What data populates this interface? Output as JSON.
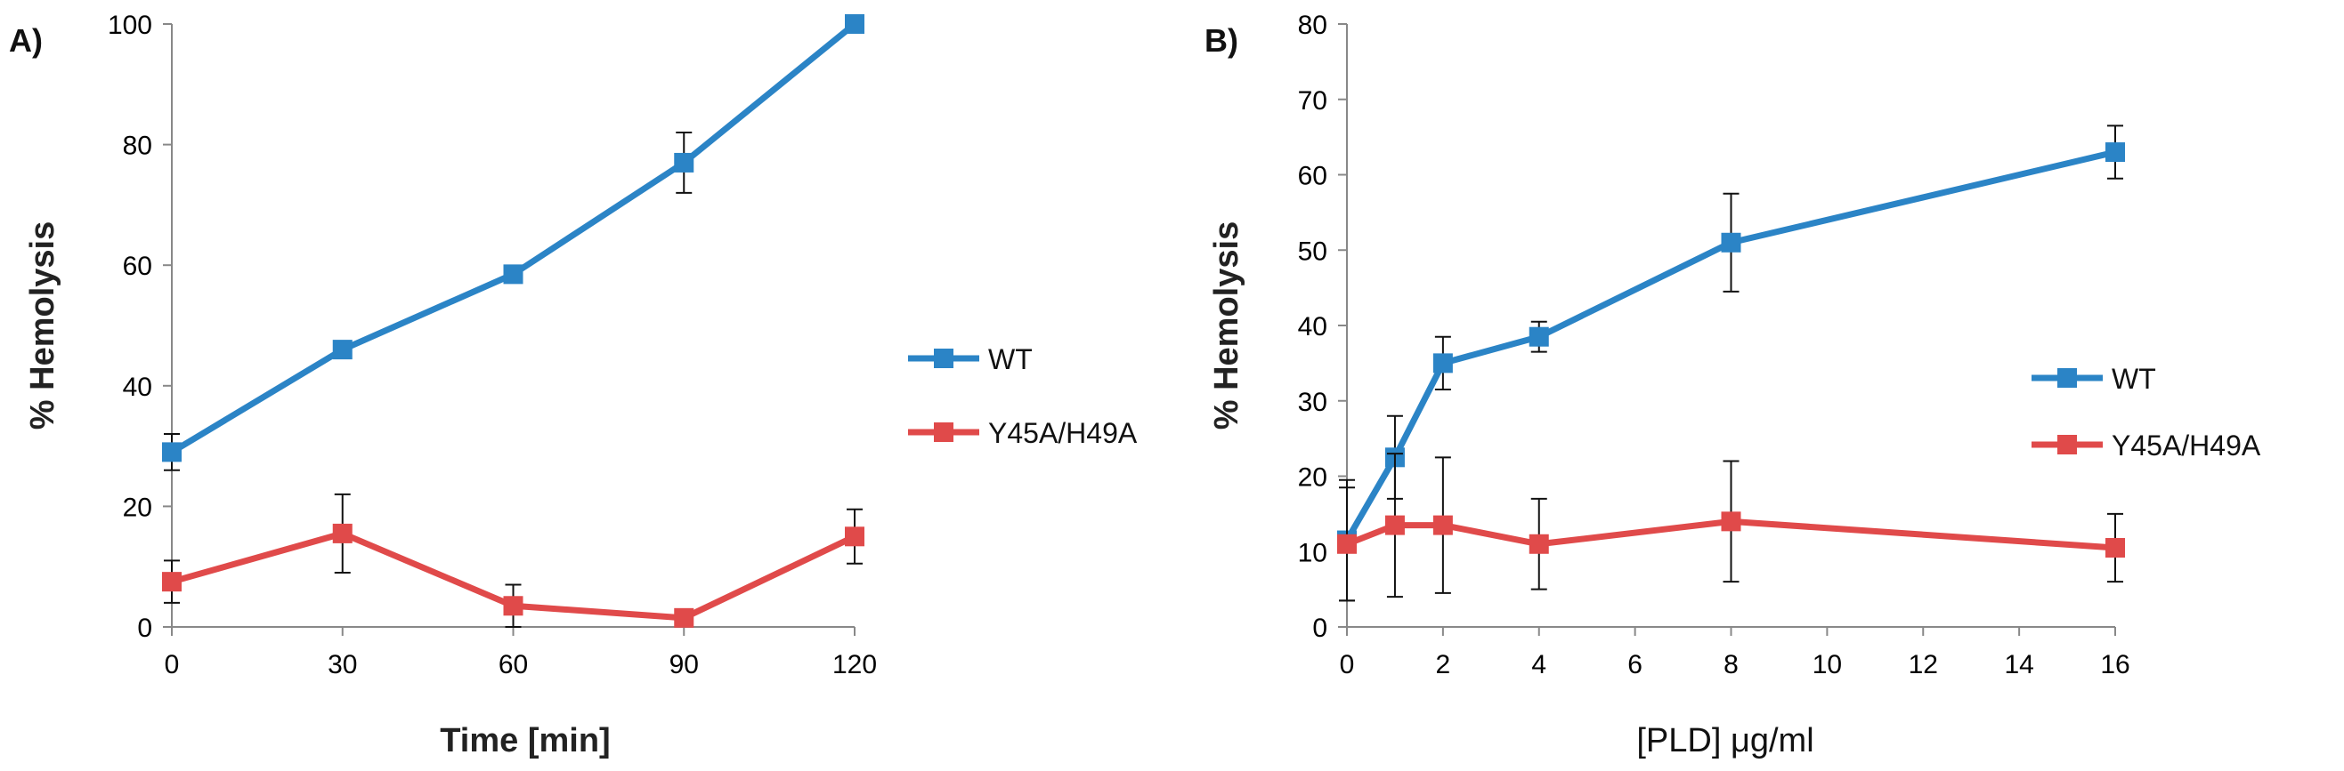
{
  "chart_data": [
    {
      "panel_label": "A)",
      "type": "line",
      "xlabel": "Time [min]",
      "ylabel": "% Hemolysis",
      "x": [
        0,
        30,
        60,
        90,
        120
      ],
      "x_ticks": [
        0,
        30,
        60,
        90,
        120
      ],
      "y_ticks": [
        0,
        20,
        40,
        60,
        80,
        100
      ],
      "xlim": [
        0,
        120
      ],
      "ylim": [
        0,
        100
      ],
      "grid": false,
      "legend_position": "right",
      "series": [
        {
          "name": "WT",
          "color": "#2b84c6",
          "values": [
            29,
            46,
            58.5,
            77,
            100
          ],
          "errors": [
            3,
            0,
            0,
            5,
            0
          ]
        },
        {
          "name": "Y45A/H49A",
          "color": "#e04a4a",
          "values": [
            7.5,
            15.5,
            3.5,
            1.5,
            15
          ],
          "errors": [
            3.5,
            6.5,
            3.5,
            0,
            4.5
          ]
        }
      ]
    },
    {
      "panel_label": "B)",
      "type": "line",
      "xlabel": "[PLD] μg/ml",
      "ylabel": "% Hemolysis",
      "x": [
        0,
        1,
        2,
        4,
        8,
        16
      ],
      "x_ticks": [
        0,
        2,
        4,
        6,
        8,
        10,
        12,
        14,
        16
      ],
      "y_ticks": [
        0,
        10,
        20,
        30,
        40,
        50,
        60,
        70,
        80
      ],
      "xlim": [
        0,
        16
      ],
      "ylim": [
        0,
        80
      ],
      "grid": false,
      "legend_position": "right",
      "series": [
        {
          "name": "WT",
          "color": "#2b84c6",
          "values": [
            11.5,
            22.5,
            35,
            38.5,
            51,
            63
          ],
          "errors": [
            8,
            5.5,
            3.5,
            2,
            6.5,
            3.5
          ]
        },
        {
          "name": "Y45A/H49A",
          "color": "#e04a4a",
          "values": [
            11,
            13.5,
            13.5,
            11,
            14,
            10.5
          ],
          "errors": [
            7.5,
            9.5,
            9,
            6,
            8,
            4.5
          ]
        }
      ]
    }
  ]
}
